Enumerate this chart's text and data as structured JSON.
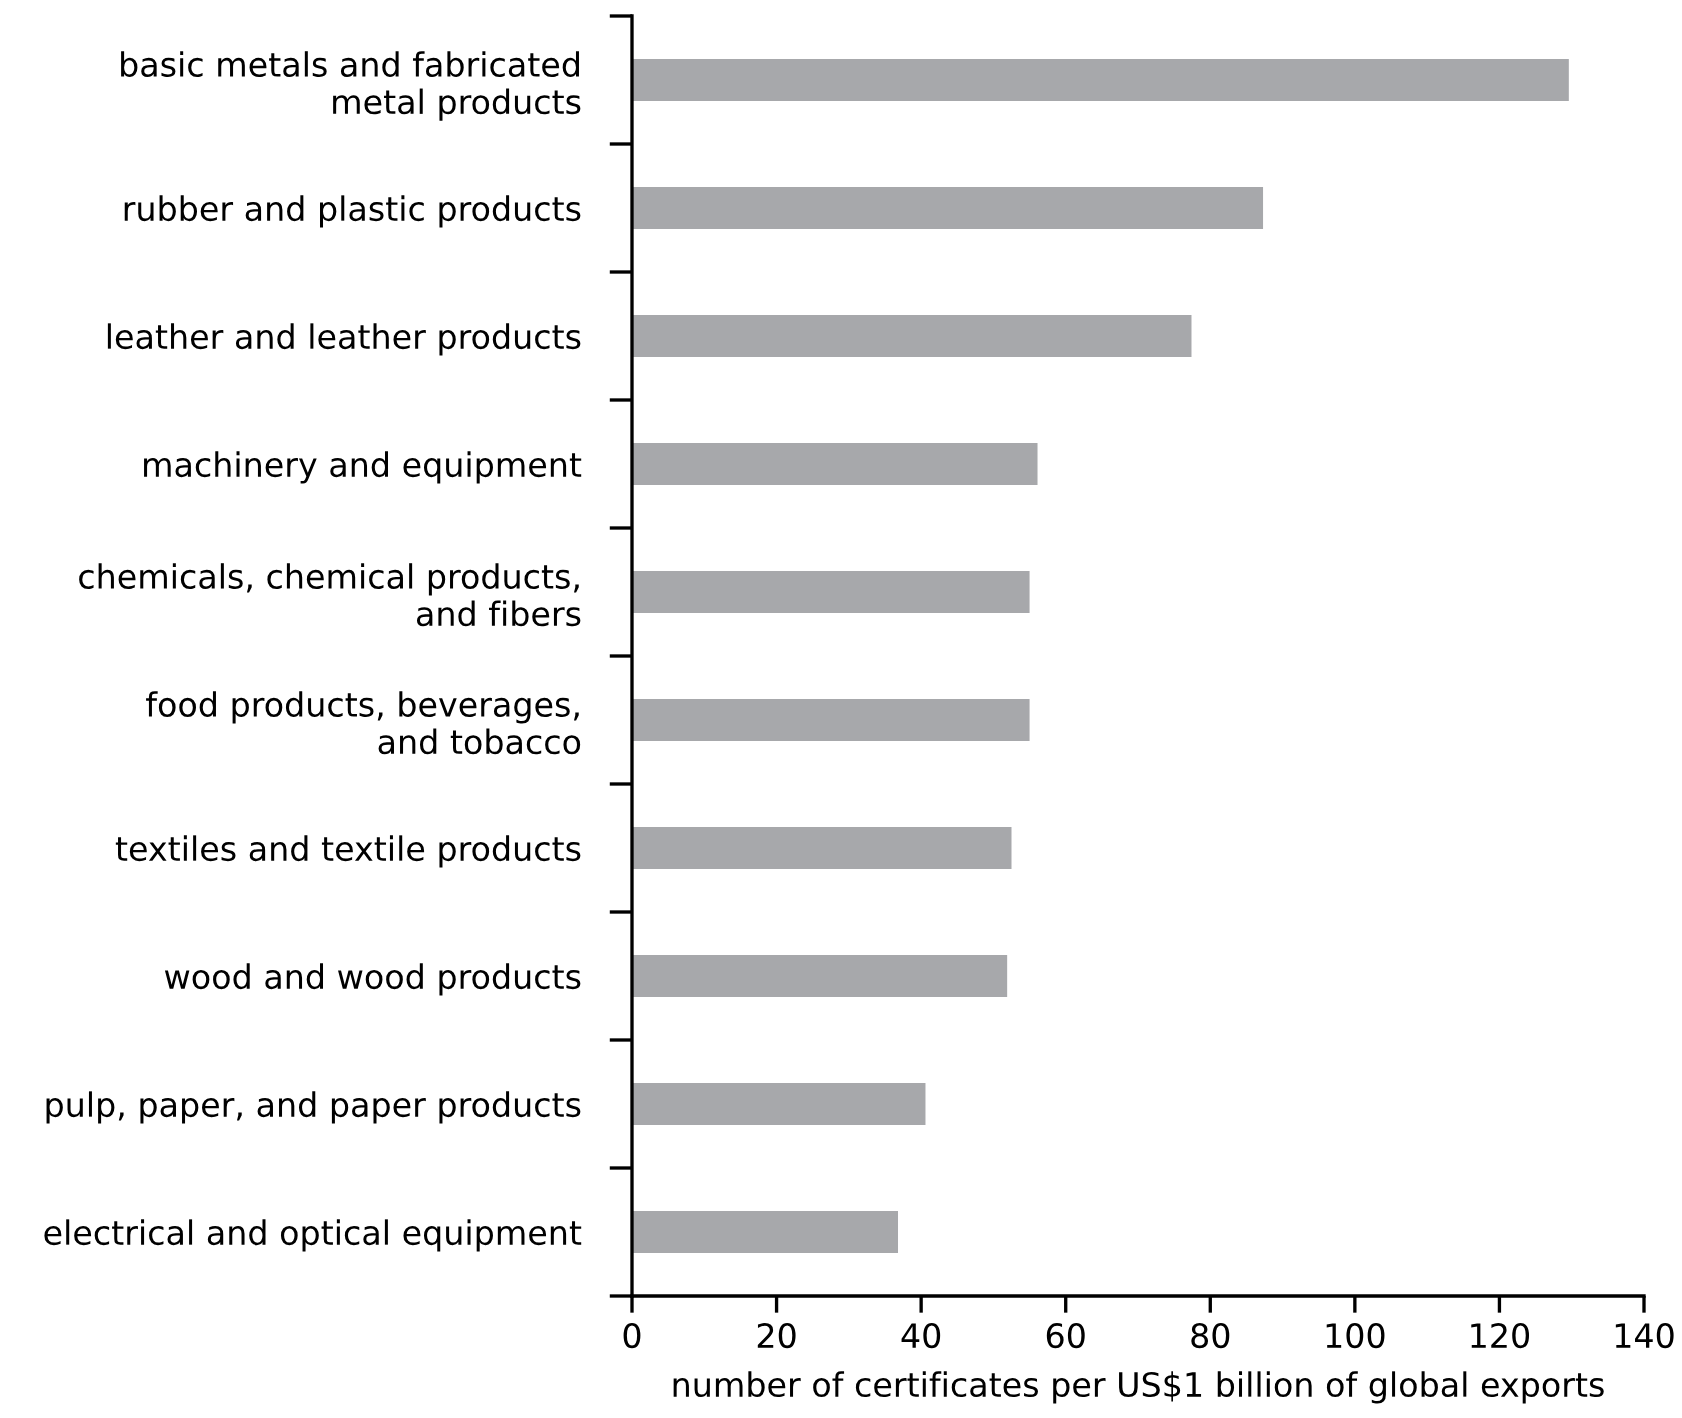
{
  "chart_data": {
    "type": "bar",
    "orientation": "horizontal",
    "xlabel": "number of certificates per US$1 billion of global exports",
    "categories": [
      "basic metals and fabricated\nmetal products",
      "rubber and plastic products",
      "leather and leather products",
      "machinery and equipment",
      "chemicals, chemical products,\nand fibers",
      "food products, beverages,\nand tobacco",
      "textiles and textile products",
      "wood and wood products",
      "pulp, paper, and paper products",
      "electrical and optical equipment"
    ],
    "values": [
      129.6,
      87.3,
      77.4,
      56.1,
      55.0,
      55.0,
      52.5,
      51.9,
      40.6,
      36.8
    ],
    "color": "#a7a8ab",
    "xlim": [
      0,
      140
    ],
    "xticks": [
      0,
      20,
      40,
      60,
      80,
      100,
      120,
      140
    ],
    "grid": false,
    "legend": false
  }
}
